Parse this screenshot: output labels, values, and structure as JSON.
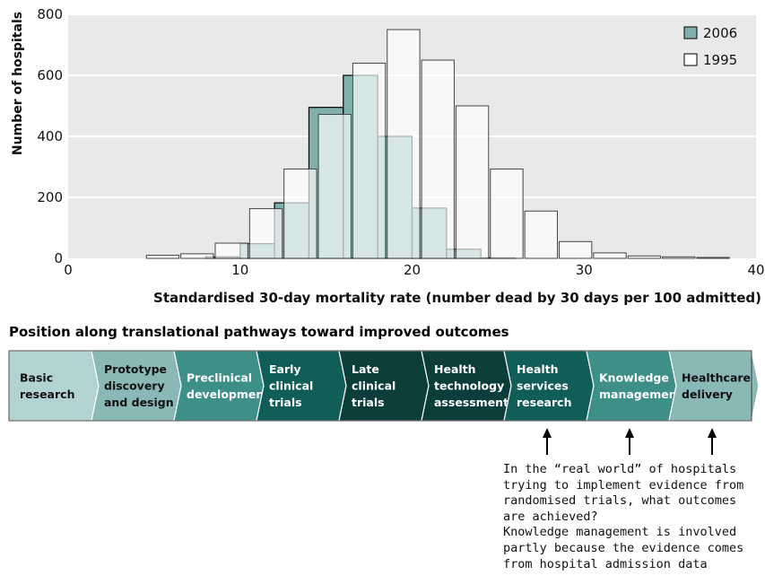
{
  "chart_data": {
    "type": "bar",
    "xlabel": "Standardised 30-day mortality rate (number dead by 30 days per 100 admitted)",
    "ylabel": "Number of hospitals",
    "xlim": [
      0,
      40
    ],
    "ylim": [
      0,
      800
    ],
    "x_ticks": [
      0,
      10,
      20,
      30,
      40
    ],
    "y_ticks": [
      0,
      200,
      400,
      600,
      800
    ],
    "bin_width": 2,
    "legend_position": "top-right",
    "grid": "horizontal",
    "series": [
      {
        "name": "2006",
        "color": "#7fb0ad",
        "bins": [
          {
            "x0": 8,
            "value": 5
          },
          {
            "x0": 10,
            "value": 48
          },
          {
            "x0": 12,
            "value": 182
          },
          {
            "x0": 14,
            "value": 495
          },
          {
            "x0": 16,
            "value": 600
          },
          {
            "x0": 18,
            "value": 400
          },
          {
            "x0": 20,
            "value": 165
          },
          {
            "x0": 22,
            "value": 30
          },
          {
            "x0": 24,
            "value": 2
          }
        ]
      },
      {
        "name": "1995",
        "color": "#ffffff",
        "bins": [
          {
            "x0": 4.5,
            "value": 10
          },
          {
            "x0": 6.5,
            "value": 15
          },
          {
            "x0": 8.5,
            "value": 50
          },
          {
            "x0": 10.5,
            "value": 163
          },
          {
            "x0": 12.5,
            "value": 293
          },
          {
            "x0": 14.5,
            "value": 472
          },
          {
            "x0": 16.5,
            "value": 640
          },
          {
            "x0": 18.5,
            "value": 750
          },
          {
            "x0": 20.5,
            "value": 650
          },
          {
            "x0": 22.5,
            "value": 500
          },
          {
            "x0": 24.5,
            "value": 293
          },
          {
            "x0": 26.5,
            "value": 155
          },
          {
            "x0": 28.5,
            "value": 55
          },
          {
            "x0": 30.5,
            "value": 18
          },
          {
            "x0": 32.5,
            "value": 8
          },
          {
            "x0": 34.5,
            "value": 5
          },
          {
            "x0": 36.5,
            "value": 3
          }
        ]
      }
    ]
  },
  "pathway": {
    "title": "Position along translational pathways toward improved outcomes",
    "stages": [
      {
        "lines": [
          "Basic",
          "research"
        ],
        "fill": "#b3d3d3",
        "text_color": "#111111"
      },
      {
        "lines": [
          "Prototype",
          "discovery",
          "and design"
        ],
        "fill": "#8ab8b6",
        "text_color": "#111111"
      },
      {
        "lines": [
          "Preclinical",
          "development"
        ],
        "fill": "#3f8f89",
        "text_color": "#ffffff"
      },
      {
        "lines": [
          "Early",
          "clinical",
          "trials"
        ],
        "fill": "#115e58",
        "text_color": "#ffffff"
      },
      {
        "lines": [
          "Late",
          "clinical",
          "trials"
        ],
        "fill": "#0b3e3b",
        "text_color": "#ffffff"
      },
      {
        "lines": [
          "Health",
          "technology",
          "assessment"
        ],
        "fill": "#0b3e3b",
        "text_color": "#ffffff"
      },
      {
        "lines": [
          "Health",
          "services",
          "research"
        ],
        "fill": "#115e58",
        "text_color": "#ffffff"
      },
      {
        "lines": [
          "Knowledge",
          "management"
        ],
        "fill": "#3f8f89",
        "text_color": "#ffffff"
      },
      {
        "lines": [
          "Healthcare",
          "delivery"
        ],
        "fill": "#8ab8b6",
        "text_color": "#111111"
      }
    ],
    "arrow_stage_indices": [
      6,
      7,
      8
    ]
  },
  "note": {
    "lines": [
      "In the “real world” of hospitals",
      "trying to implement evidence from",
      "randomised trials, what outcomes",
      "are achieved?",
      "Knowledge management is involved",
      "partly because the evidence comes",
      "from hospital admission data"
    ]
  }
}
